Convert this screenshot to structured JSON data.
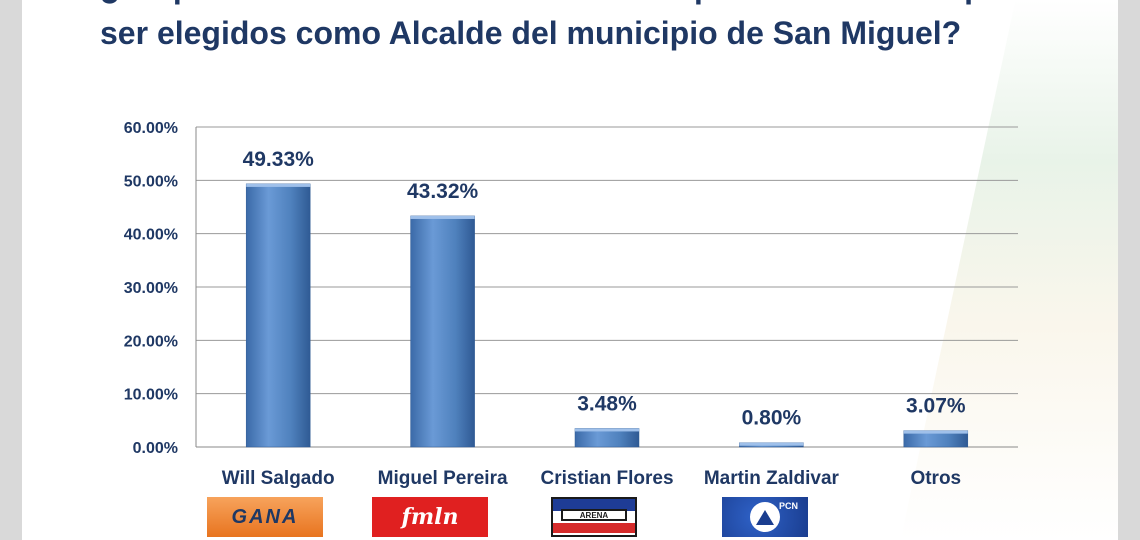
{
  "title": {
    "line1": "¿Me podría mencionar los candidatos que usted conoce para",
    "line2": "ser elegidos como Alcalde del municipio de San Miguel?"
  },
  "chart_data": {
    "type": "bar",
    "title": "¿Me podría mencionar los candidatos que usted conoce para ser elegidos como Alcalde del municipio de San Miguel?",
    "categories": [
      "Will Salgado",
      "Miguel Pereira",
      "Cristian Flores",
      "Martin Zaldivar",
      "Otros"
    ],
    "values": [
      49.33,
      43.32,
      3.48,
      0.8,
      3.07
    ],
    "value_labels": [
      "49.33%",
      "43.32%",
      "3.48%",
      "0.80%",
      "3.07%"
    ],
    "ylim": [
      0,
      60
    ],
    "yticks": [
      0,
      10,
      20,
      30,
      40,
      50,
      60
    ],
    "ytick_labels": [
      "0.00%",
      "10.00%",
      "20.00%",
      "30.00%",
      "40.00%",
      "50.00%",
      "60.00%"
    ],
    "grid": true,
    "legend": false,
    "bar_color": "#4f81bd"
  },
  "logos": {
    "gana": "GANA",
    "fmln": "fmln",
    "arena": "ARENA",
    "pcn": "PCN"
  }
}
